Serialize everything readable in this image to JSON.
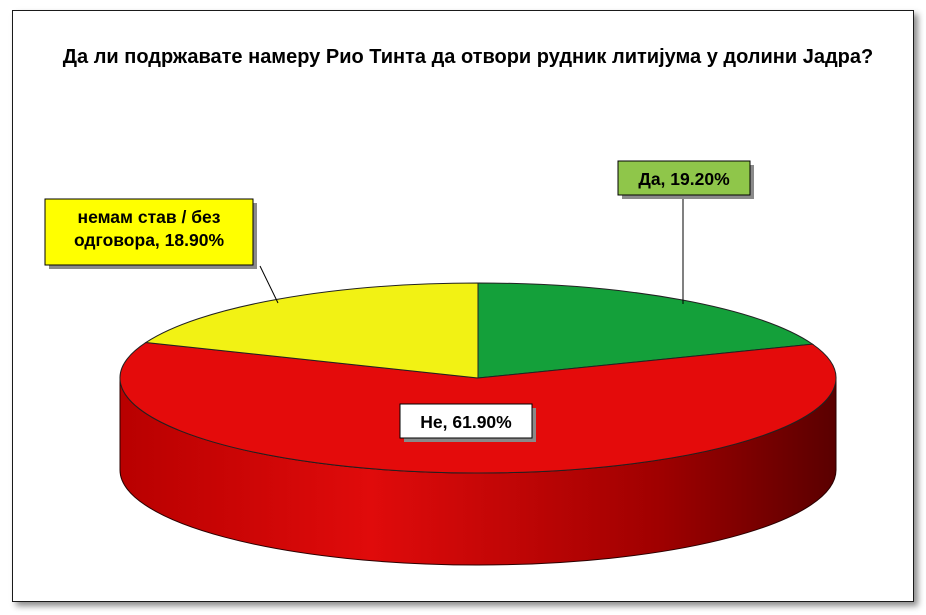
{
  "chart_data": {
    "type": "pie",
    "title": "Да ли подржавате намеру Рио Тинта да отвори рудник литијума у долини Јадра?",
    "slices": [
      {
        "name": "Да",
        "value": 19.2,
        "label": "Да, 19.20%",
        "color": "#14a03a"
      },
      {
        "name": "Не",
        "value": 61.9,
        "label": "Не, 61.90%",
        "color": "#e40b0b"
      },
      {
        "name": "немам став / без одговора",
        "value": 18.9,
        "label_lines": [
          "немам став / без",
          "одговора, 18.90%"
        ],
        "color": "#f2f214"
      }
    ],
    "label_box_colors": {
      "Да": "#8fc64a",
      "Не": "#ffffff",
      "немам став / без одговора": "#ffff00"
    },
    "style": "3d-pie"
  }
}
